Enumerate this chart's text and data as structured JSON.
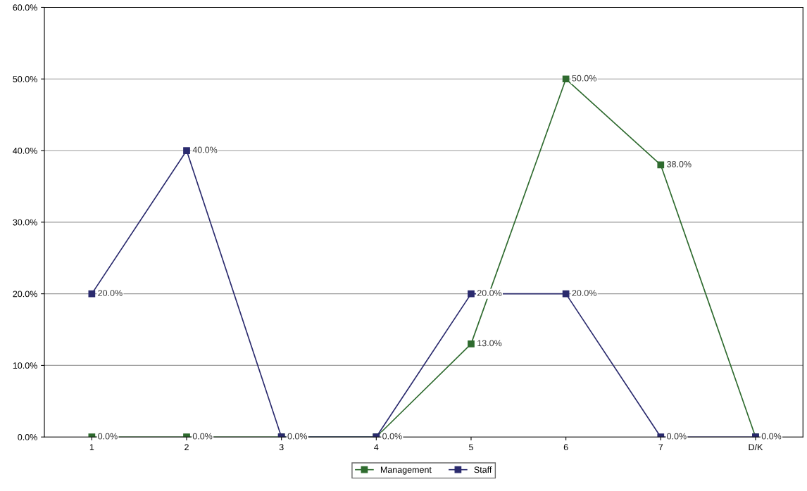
{
  "chart_data": {
    "type": "line",
    "categories": [
      "1",
      "2",
      "3",
      "4",
      "5",
      "6",
      "7",
      "D/K"
    ],
    "series": [
      {
        "name": "Management",
        "color": "#2f6b2f",
        "values": [
          0,
          0,
          0,
          0,
          13,
          50,
          38,
          0
        ],
        "value_labels": [
          "0.0%",
          "0.0%",
          null,
          null,
          "13.0%",
          "50.0%",
          "38.0%",
          null
        ]
      },
      {
        "name": "Staff",
        "color": "#2b2b6e",
        "values": [
          20,
          40,
          0,
          0,
          20,
          20,
          0,
          0
        ],
        "value_labels": [
          "20.0%",
          "40.0%",
          "0.0%",
          "0.0%",
          "20.0%",
          "20.0%",
          "0.0%",
          "0.0%"
        ]
      }
    ],
    "ylim": [
      0,
      60
    ],
    "yticks": [
      {
        "value": 0,
        "label": "0.0%"
      },
      {
        "value": 10,
        "label": "10.0%"
      },
      {
        "value": 20,
        "label": "20.0%"
      },
      {
        "value": 30,
        "label": "30.0%"
      },
      {
        "value": 40,
        "label": "40.0%"
      },
      {
        "value": 50,
        "label": "50.0%"
      },
      {
        "value": 60,
        "label": "60.0%"
      }
    ],
    "grid": "y",
    "legend": "bottom",
    "marker": "square",
    "line_style": "solid"
  }
}
